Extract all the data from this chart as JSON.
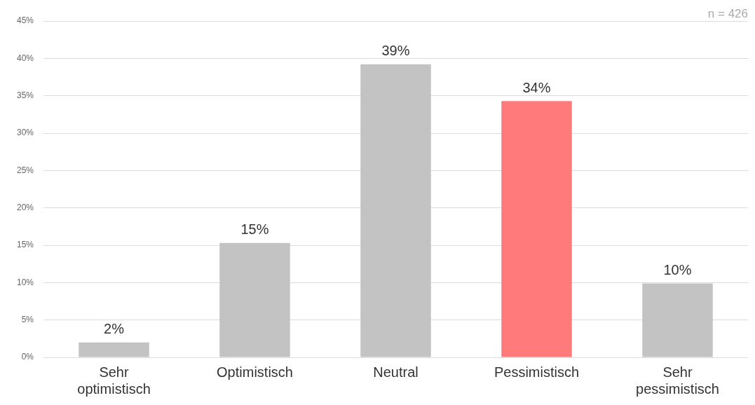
{
  "chart_data": {
    "type": "bar",
    "categories": [
      "Sehr optimistisch",
      "Optimistisch",
      "Neutral",
      "Pessimistisch",
      "Sehr pessimistisch"
    ],
    "values": [
      2,
      15.3,
      39.2,
      34.3,
      9.9
    ],
    "value_labels": [
      "2%",
      "15%",
      "39%",
      "34%",
      "10%"
    ],
    "colors": [
      "#c3c3c3",
      "#c3c3c3",
      "#c3c3c3",
      "#ff7b7b",
      "#c3c3c3"
    ],
    "ylim": [
      0,
      45
    ],
    "yticks": [
      {
        "value": 0,
        "label": "0%"
      },
      {
        "value": 5,
        "label": "5%"
      },
      {
        "value": 10,
        "label": "10%"
      },
      {
        "value": 15,
        "label": "15%"
      },
      {
        "value": 20,
        "label": "20%"
      },
      {
        "value": 25,
        "label": "25%"
      },
      {
        "value": 30,
        "label": "30%"
      },
      {
        "value": 35,
        "label": "35%"
      },
      {
        "value": 40,
        "label": "40%"
      },
      {
        "value": 45,
        "label": "45%"
      }
    ],
    "grid": "y",
    "legend": false,
    "annotations": [
      "n = 426"
    ]
  }
}
